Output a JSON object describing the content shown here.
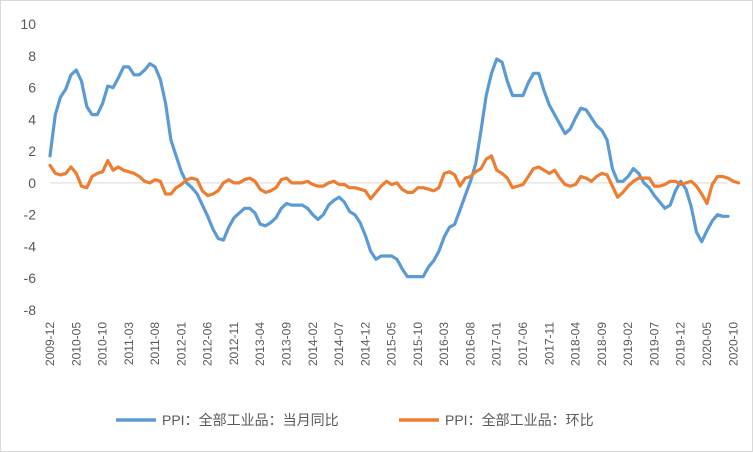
{
  "chart_data": {
    "type": "line",
    "title": "",
    "xlabel": "",
    "ylabel": "",
    "ylim": [
      -8,
      10
    ],
    "yticks": [
      -8,
      -6,
      -4,
      -2,
      0,
      2,
      4,
      6,
      8,
      10
    ],
    "grid": false,
    "legend_position": "bottom",
    "x_start": "2009-12",
    "x_end": "2020-10",
    "x_tick_labels": [
      "2009-12",
      "2010-05",
      "2010-10",
      "2011-03",
      "2011-08",
      "2012-01",
      "2012-06",
      "2012-11",
      "2013-04",
      "2013-09",
      "2014-02",
      "2014-07",
      "2014-12",
      "2015-05",
      "2015-10",
      "2016-03",
      "2016-08",
      "2017-01",
      "2017-06",
      "2017-11",
      "2018-04",
      "2018-09",
      "2019-02",
      "2019-07",
      "2019-12",
      "2020-05",
      "2020-10"
    ],
    "series": [
      {
        "name": "PPI：全部工业品：当月同比",
        "color": "#5b9bd5",
        "values": [
          1.7,
          4.3,
          5.4,
          5.9,
          6.8,
          7.1,
          6.4,
          4.8,
          4.3,
          4.3,
          5.0,
          6.1,
          6.0,
          6.6,
          7.3,
          7.3,
          6.8,
          6.8,
          7.1,
          7.5,
          7.3,
          6.5,
          5.0,
          2.7,
          1.7,
          0.7,
          0.0,
          -0.3,
          -0.7,
          -1.4,
          -2.1,
          -2.9,
          -3.5,
          -3.6,
          -2.8,
          -2.2,
          -1.9,
          -1.6,
          -1.6,
          -1.9,
          -2.6,
          -2.7,
          -2.5,
          -2.2,
          -1.6,
          -1.3,
          -1.4,
          -1.4,
          -1.4,
          -1.6,
          -2.0,
          -2.3,
          -2.0,
          -1.4,
          -1.1,
          -0.9,
          -1.2,
          -1.8,
          -2.0,
          -2.5,
          -3.3,
          -4.3,
          -4.8,
          -4.6,
          -4.6,
          -4.6,
          -4.8,
          -5.4,
          -5.9,
          -5.9,
          -5.9,
          -5.9,
          -5.3,
          -4.9,
          -4.3,
          -3.4,
          -2.8,
          -2.6,
          -1.7,
          -0.8,
          0.1,
          1.2,
          3.3,
          5.5,
          6.9,
          7.8,
          7.6,
          6.4,
          5.5,
          5.5,
          5.5,
          6.3,
          6.9,
          6.9,
          5.8,
          4.9,
          4.3,
          3.7,
          3.1,
          3.4,
          4.1,
          4.7,
          4.6,
          4.1,
          3.6,
          3.3,
          2.7,
          0.9,
          0.1,
          0.1,
          0.4,
          0.9,
          0.6,
          0.0,
          -0.3,
          -0.8,
          -1.2,
          -1.6,
          -1.4,
          -0.5,
          0.1,
          -0.4,
          -1.5,
          -3.1,
          -3.7,
          -3.0,
          -2.4,
          -2.0,
          -2.1,
          -2.1
        ]
      },
      {
        "name": "PPI：全部工业品：环比",
        "color": "#ed7d31",
        "values": [
          1.1,
          0.6,
          0.5,
          0.6,
          1.0,
          0.6,
          -0.2,
          -0.3,
          0.4,
          0.6,
          0.7,
          1.4,
          0.8,
          1.0,
          0.8,
          0.7,
          0.6,
          0.4,
          0.1,
          0.0,
          0.2,
          0.1,
          -0.7,
          -0.7,
          -0.3,
          -0.1,
          0.2,
          0.3,
          0.2,
          -0.5,
          -0.8,
          -0.7,
          -0.5,
          0.0,
          0.2,
          0.0,
          0.0,
          0.2,
          0.3,
          0.1,
          -0.4,
          -0.6,
          -0.5,
          -0.3,
          0.2,
          0.3,
          0.0,
          0.0,
          0.0,
          0.1,
          -0.1,
          -0.2,
          -0.2,
          0.0,
          0.1,
          -0.1,
          -0.1,
          -0.3,
          -0.3,
          -0.4,
          -0.5,
          -1.0,
          -0.6,
          -0.2,
          0.1,
          -0.1,
          0.0,
          -0.4,
          -0.6,
          -0.6,
          -0.3,
          -0.3,
          -0.4,
          -0.5,
          -0.3,
          0.6,
          0.7,
          0.5,
          -0.2,
          0.3,
          0.4,
          0.7,
          0.9,
          1.5,
          1.7,
          0.8,
          0.6,
          0.3,
          -0.3,
          -0.2,
          -0.1,
          0.4,
          0.9,
          1.0,
          0.8,
          0.6,
          0.8,
          0.3,
          -0.1,
          -0.2,
          -0.1,
          0.4,
          0.3,
          0.1,
          0.4,
          0.6,
          0.5,
          -0.2,
          -0.9,
          -0.6,
          -0.2,
          0.1,
          0.3,
          0.3,
          0.3,
          -0.2,
          -0.2,
          -0.1,
          0.1,
          0.1,
          -0.1,
          0.0,
          0.1,
          -0.2,
          -0.7,
          -1.3,
          -0.1,
          0.4,
          0.4,
          0.3,
          0.1,
          0.0
        ]
      }
    ]
  }
}
